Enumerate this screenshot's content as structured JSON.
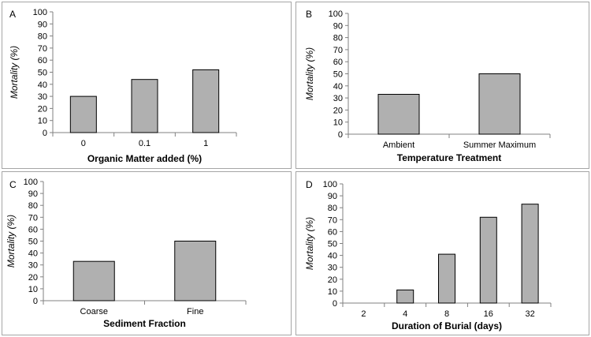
{
  "chart_data": [
    {
      "type": "bar",
      "panel_label": "A",
      "categories": [
        "0",
        "0.1",
        "1"
      ],
      "values": [
        30,
        44,
        52
      ],
      "xlabel": "Organic Matter added (%)",
      "ylabel": "Mortality (%)",
      "ylim": [
        0,
        100
      ],
      "yticks": [
        0,
        10,
        20,
        30,
        40,
        50,
        60,
        70,
        80,
        90,
        100
      ],
      "grid": false
    },
    {
      "type": "bar",
      "panel_label": "B",
      "categories": [
        "Ambient",
        "Summer Maximum"
      ],
      "values": [
        33,
        50
      ],
      "xlabel": "Temperature Treatment",
      "ylabel": "Mortality (%)",
      "ylim": [
        0,
        100
      ],
      "yticks": [
        0,
        10,
        20,
        30,
        40,
        50,
        60,
        70,
        80,
        90,
        100
      ],
      "grid": false
    },
    {
      "type": "bar",
      "panel_label": "C",
      "categories": [
        "Coarse",
        "Fine"
      ],
      "values": [
        33,
        50
      ],
      "xlabel": "Sediment Fraction",
      "ylabel": "Mortality (%)",
      "ylim": [
        0,
        100
      ],
      "yticks": [
        0,
        10,
        20,
        30,
        40,
        50,
        60,
        70,
        80,
        90,
        100
      ],
      "grid": false
    },
    {
      "type": "bar",
      "panel_label": "D",
      "categories": [
        "2",
        "4",
        "8",
        "16",
        "32"
      ],
      "values": [
        0,
        11,
        41,
        72,
        83
      ],
      "xlabel": "Duration of Burial (days)",
      "ylabel": "Mortality (%)",
      "ylim": [
        0,
        100
      ],
      "yticks": [
        0,
        10,
        20,
        30,
        40,
        50,
        60,
        70,
        80,
        90,
        100
      ],
      "grid": false
    }
  ],
  "colors": {
    "bar_fill": "#b0b0b0",
    "bar_stroke": "#000000",
    "axis": "#808080",
    "panel_border": "#a6a6a6"
  }
}
